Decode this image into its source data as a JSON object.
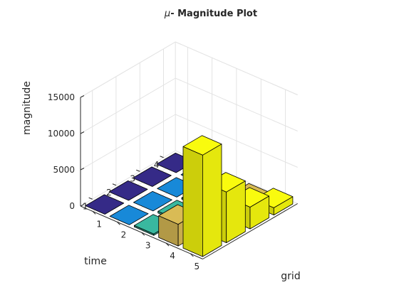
{
  "chart_data": {
    "type": "bar3",
    "title": "μ- Magnitude Plot",
    "title_prefix": "μ",
    "title_rest": "- Magnitude Plot",
    "xlabel": "grid",
    "ylabel": "time",
    "zlabel": "magnitude",
    "x_ticks": [
      "1",
      "2",
      "3",
      "4",
      "5"
    ],
    "y_ticks": [
      "1",
      "2",
      "3",
      "4"
    ],
    "z_ticks": [
      "0",
      "5000",
      "10000",
      "15000"
    ],
    "zlim": [
      0,
      15000
    ],
    "grid": true,
    "colors": [
      "#352a87",
      "#1889d8",
      "#39b89f",
      "#d9bb55",
      "#f9fb0e"
    ],
    "values": [
      [
        0,
        0,
        0,
        0
      ],
      [
        0,
        0,
        0,
        0
      ],
      [
        200,
        250,
        200,
        150
      ],
      [
        3000,
        1000,
        500,
        200
      ],
      [
        14000,
        7000,
        3000,
        1000
      ]
    ]
  }
}
